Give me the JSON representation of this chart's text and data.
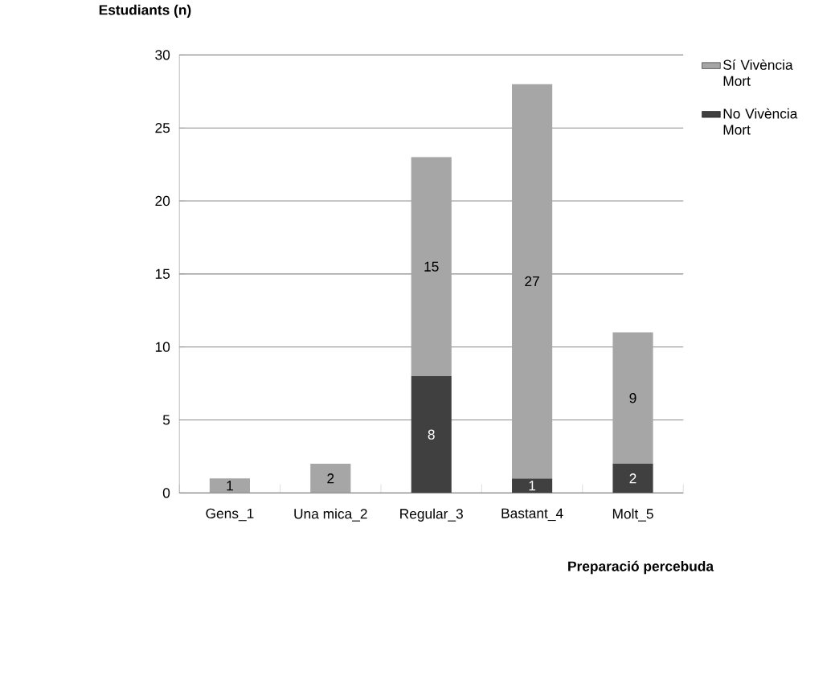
{
  "chart_data": {
    "type": "bar",
    "stacked": true,
    "xlabel": "Preparació percebuda",
    "ylabel": "Estudiants (n)",
    "categories": [
      "Gens_1",
      "Una mica_2",
      "Regular_3",
      "Bastant_4",
      "Molt_5"
    ],
    "series": [
      {
        "name": "No Vivència Mort",
        "color": "#404040",
        "values": [
          null,
          null,
          8,
          1,
          2
        ]
      },
      {
        "name": "Sí Vivència Mort",
        "color": "#a6a6a6",
        "values": [
          1,
          2,
          15,
          27,
          9
        ]
      }
    ],
    "ylim": [
      0,
      30
    ],
    "yticks": [
      0,
      5,
      10,
      15,
      20,
      25,
      30
    ],
    "grid": "y",
    "legend": "right",
    "data_labels": true
  }
}
